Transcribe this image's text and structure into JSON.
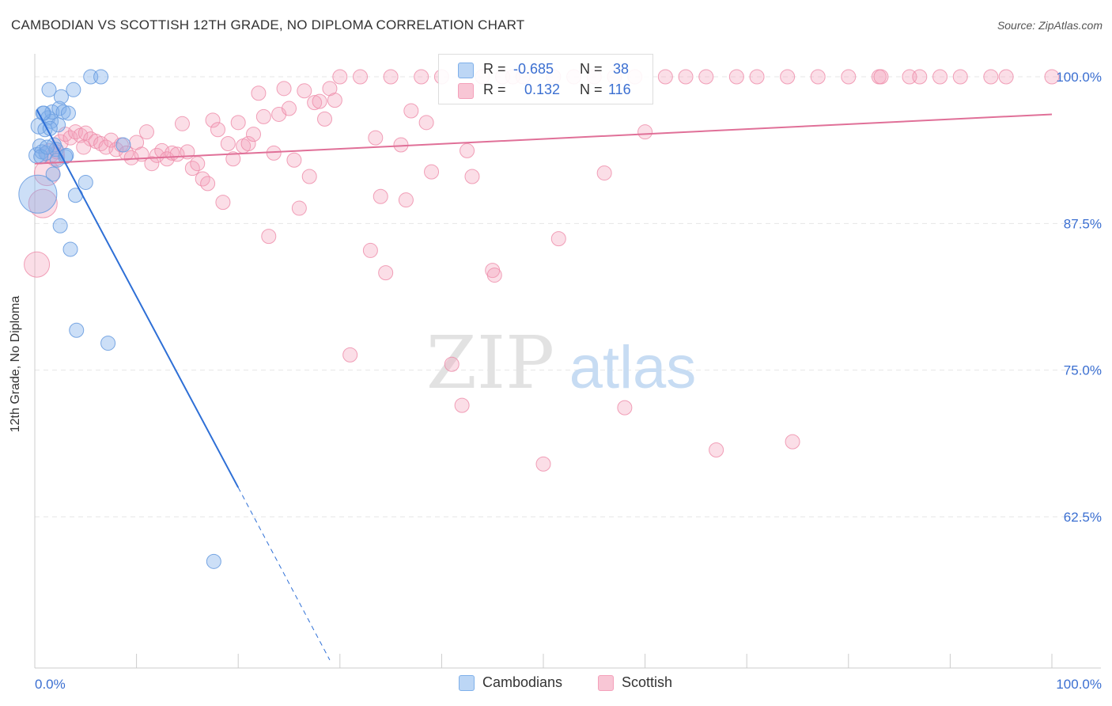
{
  "header": {
    "title": "CAMBODIAN VS SCOTTISH 12TH GRADE, NO DIPLOMA CORRELATION CHART",
    "source": "Source: ZipAtlas.com"
  },
  "watermark": {
    "part1": "ZIP",
    "part2": "atlas"
  },
  "legend": {
    "cambodians": {
      "r_label": "R =",
      "r_value": "-0.685",
      "n_label": "N =",
      "n_value": "38",
      "color": "#7fb0ea"
    },
    "scottish": {
      "r_label": "R =",
      "r_value": "0.132",
      "n_label": "N =",
      "n_value": "116",
      "color": "#f4a0ba"
    }
  },
  "bottom_legend": {
    "cambodians": "Cambodians",
    "scottish": "Scottish"
  },
  "chart_data": {
    "type": "scatter",
    "title": "CAMBODIAN VS SCOTTISH 12TH GRADE, NO DIPLOMA CORRELATION CHART",
    "xlabel": "",
    "ylabel": "12th Grade, No Diploma",
    "xlim": [
      0,
      100
    ],
    "ylim": [
      50,
      101.5
    ],
    "x_tick_labels": [
      "0.0%",
      "100.0%"
    ],
    "y_ticks": [
      62.5,
      75.0,
      87.5,
      100.0
    ],
    "y_tick_labels": [
      "62.5%",
      "75.0%",
      "87.5%",
      "100.0%"
    ],
    "series": [
      {
        "name": "Cambodians",
        "color": "#7fb0ea",
        "stroke": "#6a9de0",
        "trend_color": "#2e6fd6",
        "trend": {
          "x0": 0.2,
          "y0": 97.2,
          "x1": 20,
          "y1": 65.0,
          "dash_x1": 29,
          "dash_y1": 50.3
        },
        "points": [
          [
            0.3,
            90.0,
            24
          ],
          [
            0.2,
            93.3,
            10
          ],
          [
            0.4,
            95.8,
            10
          ],
          [
            0.5,
            94.1,
            9
          ],
          [
            0.7,
            93.6,
            9
          ],
          [
            0.9,
            96.9,
            9
          ],
          [
            1.1,
            93.5,
            9
          ],
          [
            1.3,
            96.5,
            9
          ],
          [
            1.4,
            98.9,
            9
          ],
          [
            1.6,
            96.2,
            9
          ],
          [
            1.7,
            97.0,
            9
          ],
          [
            1.8,
            91.7,
            9
          ],
          [
            1.9,
            94.2,
            9
          ],
          [
            2.1,
            93.8,
            9
          ],
          [
            2.3,
            95.9,
            9
          ],
          [
            2.4,
            97.3,
            9
          ],
          [
            2.5,
            87.3,
            9
          ],
          [
            2.6,
            98.3,
            9
          ],
          [
            2.8,
            97.0,
            9
          ],
          [
            3.0,
            93.2,
            9
          ],
          [
            3.3,
            96.9,
            9
          ],
          [
            3.5,
            85.3,
            9
          ],
          [
            3.8,
            98.9,
            9
          ],
          [
            4.0,
            89.9,
            9
          ],
          [
            4.1,
            78.4,
            9
          ],
          [
            5.0,
            91.0,
            9
          ],
          [
            5.5,
            100.0,
            9
          ],
          [
            6.5,
            100.0,
            9
          ],
          [
            7.2,
            77.3,
            9
          ],
          [
            8.7,
            94.2,
            9
          ],
          [
            17.6,
            58.7,
            9
          ],
          [
            0.6,
            93.2,
            9
          ],
          [
            1.0,
            95.5,
            9
          ],
          [
            2.2,
            92.9,
            9
          ],
          [
            3.1,
            93.3,
            9
          ],
          [
            1.2,
            94.0,
            9
          ],
          [
            0.8,
            96.9,
            9
          ],
          [
            1.5,
            95.6,
            9
          ]
        ]
      },
      {
        "name": "Scottish",
        "color": "#f4a0ba",
        "stroke": "#ee8aa8",
        "trend_color": "#e07098",
        "trend": {
          "x0": 0,
          "y0": 92.6,
          "x1": 100,
          "y1": 96.8
        },
        "points": [
          [
            0.2,
            84.0,
            16
          ],
          [
            0.8,
            89.2,
            18
          ],
          [
            1.2,
            91.8,
            16
          ],
          [
            1.5,
            93.5,
            12
          ],
          [
            2.0,
            93.2,
            12
          ],
          [
            2.5,
            94.4,
            10
          ],
          [
            3.0,
            95.1,
            9
          ],
          [
            3.5,
            94.8,
            9
          ],
          [
            4.0,
            95.3,
            9
          ],
          [
            4.5,
            95.0,
            9
          ],
          [
            5.0,
            95.2,
            9
          ],
          [
            5.5,
            94.7,
            9
          ],
          [
            6.0,
            94.5,
            9
          ],
          [
            6.5,
            94.3,
            9
          ],
          [
            7.0,
            94.0,
            9
          ],
          [
            7.5,
            94.6,
            9
          ],
          [
            8.0,
            93.8,
            9
          ],
          [
            8.5,
            94.2,
            9
          ],
          [
            9.0,
            93.5,
            9
          ],
          [
            9.5,
            93.1,
            9
          ],
          [
            10.0,
            94.4,
            9
          ],
          [
            10.5,
            93.4,
            9
          ],
          [
            11.0,
            95.3,
            9
          ],
          [
            11.5,
            92.6,
            9
          ],
          [
            12.0,
            93.3,
            9
          ],
          [
            12.5,
            93.7,
            9
          ],
          [
            13.0,
            93.0,
            9
          ],
          [
            13.5,
            93.5,
            9
          ],
          [
            14.0,
            93.4,
            9
          ],
          [
            14.5,
            96.0,
            9
          ],
          [
            15.0,
            93.6,
            9
          ],
          [
            15.5,
            92.2,
            9
          ],
          [
            16.0,
            92.6,
            9
          ],
          [
            16.5,
            91.3,
            9
          ],
          [
            17.0,
            90.9,
            9
          ],
          [
            17.5,
            96.3,
            9
          ],
          [
            18.0,
            95.5,
            9
          ],
          [
            18.5,
            89.3,
            9
          ],
          [
            19.0,
            94.3,
            9
          ],
          [
            19.5,
            93.0,
            9
          ],
          [
            20.0,
            96.1,
            9
          ],
          [
            20.5,
            94.1,
            9
          ],
          [
            21.0,
            94.3,
            9
          ],
          [
            21.5,
            95.1,
            9
          ],
          [
            22.0,
            98.6,
            9
          ],
          [
            22.5,
            96.6,
            9
          ],
          [
            23.0,
            86.4,
            9
          ],
          [
            23.5,
            93.5,
            9
          ],
          [
            24.0,
            96.8,
            9
          ],
          [
            24.5,
            99.0,
            9
          ],
          [
            25.0,
            97.3,
            9
          ],
          [
            25.5,
            92.9,
            9
          ],
          [
            26.0,
            88.8,
            9
          ],
          [
            26.5,
            98.8,
            9
          ],
          [
            27.0,
            91.5,
            9
          ],
          [
            27.5,
            97.8,
            9
          ],
          [
            28.0,
            97.9,
            9
          ],
          [
            28.5,
            96.4,
            9
          ],
          [
            29.0,
            99.0,
            9
          ],
          [
            29.5,
            98.0,
            9
          ],
          [
            30.0,
            100.0,
            9
          ],
          [
            31.0,
            76.3,
            9
          ],
          [
            32.0,
            100.0,
            9
          ],
          [
            33.0,
            85.2,
            9
          ],
          [
            33.5,
            94.8,
            9
          ],
          [
            34.0,
            89.8,
            9
          ],
          [
            34.5,
            83.3,
            9
          ],
          [
            35.0,
            100.0,
            9
          ],
          [
            36.0,
            94.2,
            9
          ],
          [
            36.5,
            89.5,
            9
          ],
          [
            37.0,
            97.1,
            9
          ],
          [
            38.0,
            100.0,
            9
          ],
          [
            38.5,
            96.1,
            9
          ],
          [
            39.0,
            91.9,
            9
          ],
          [
            40.0,
            100.0,
            9
          ],
          [
            41.0,
            75.5,
            9
          ],
          [
            42.0,
            72.0,
            9
          ],
          [
            42.5,
            93.7,
            9
          ],
          [
            43.0,
            91.5,
            9
          ],
          [
            44.0,
            100.0,
            9
          ],
          [
            45.0,
            83.5,
            9
          ],
          [
            45.2,
            83.1,
            9
          ],
          [
            46.0,
            100.0,
            9
          ],
          [
            47.0,
            100.0,
            9
          ],
          [
            48.0,
            100.0,
            9
          ],
          [
            50.0,
            67.0,
            9
          ],
          [
            51.0,
            100.0,
            9
          ],
          [
            51.5,
            86.2,
            9
          ],
          [
            53.0,
            100.0,
            9
          ],
          [
            55.0,
            100.0,
            9
          ],
          [
            56.0,
            91.8,
            9
          ],
          [
            57.0,
            100.0,
            9
          ],
          [
            58.0,
            71.8,
            9
          ],
          [
            59.0,
            100.0,
            9
          ],
          [
            60.0,
            95.3,
            9
          ],
          [
            62.0,
            100.0,
            9
          ],
          [
            64.0,
            100.0,
            9
          ],
          [
            66.0,
            100.0,
            9
          ],
          [
            67.0,
            68.2,
            9
          ],
          [
            69.0,
            100.0,
            9
          ],
          [
            71.0,
            100.0,
            9
          ],
          [
            74.0,
            100.0,
            9
          ],
          [
            74.5,
            68.9,
            9
          ],
          [
            77.0,
            100.0,
            9
          ],
          [
            80.0,
            100.0,
            9
          ],
          [
            83.0,
            100.0,
            9
          ],
          [
            83.2,
            100.0,
            9
          ],
          [
            86.0,
            100.0,
            9
          ],
          [
            87.0,
            100.0,
            9
          ],
          [
            89.0,
            100.0,
            9
          ],
          [
            91.0,
            100.0,
            9
          ],
          [
            94.0,
            100.0,
            9
          ],
          [
            95.5,
            100.0,
            9
          ],
          [
            100.0,
            100.0,
            9
          ],
          [
            4.8,
            94.0,
            9
          ],
          [
            2.2,
            93.6,
            9
          ]
        ]
      }
    ]
  }
}
